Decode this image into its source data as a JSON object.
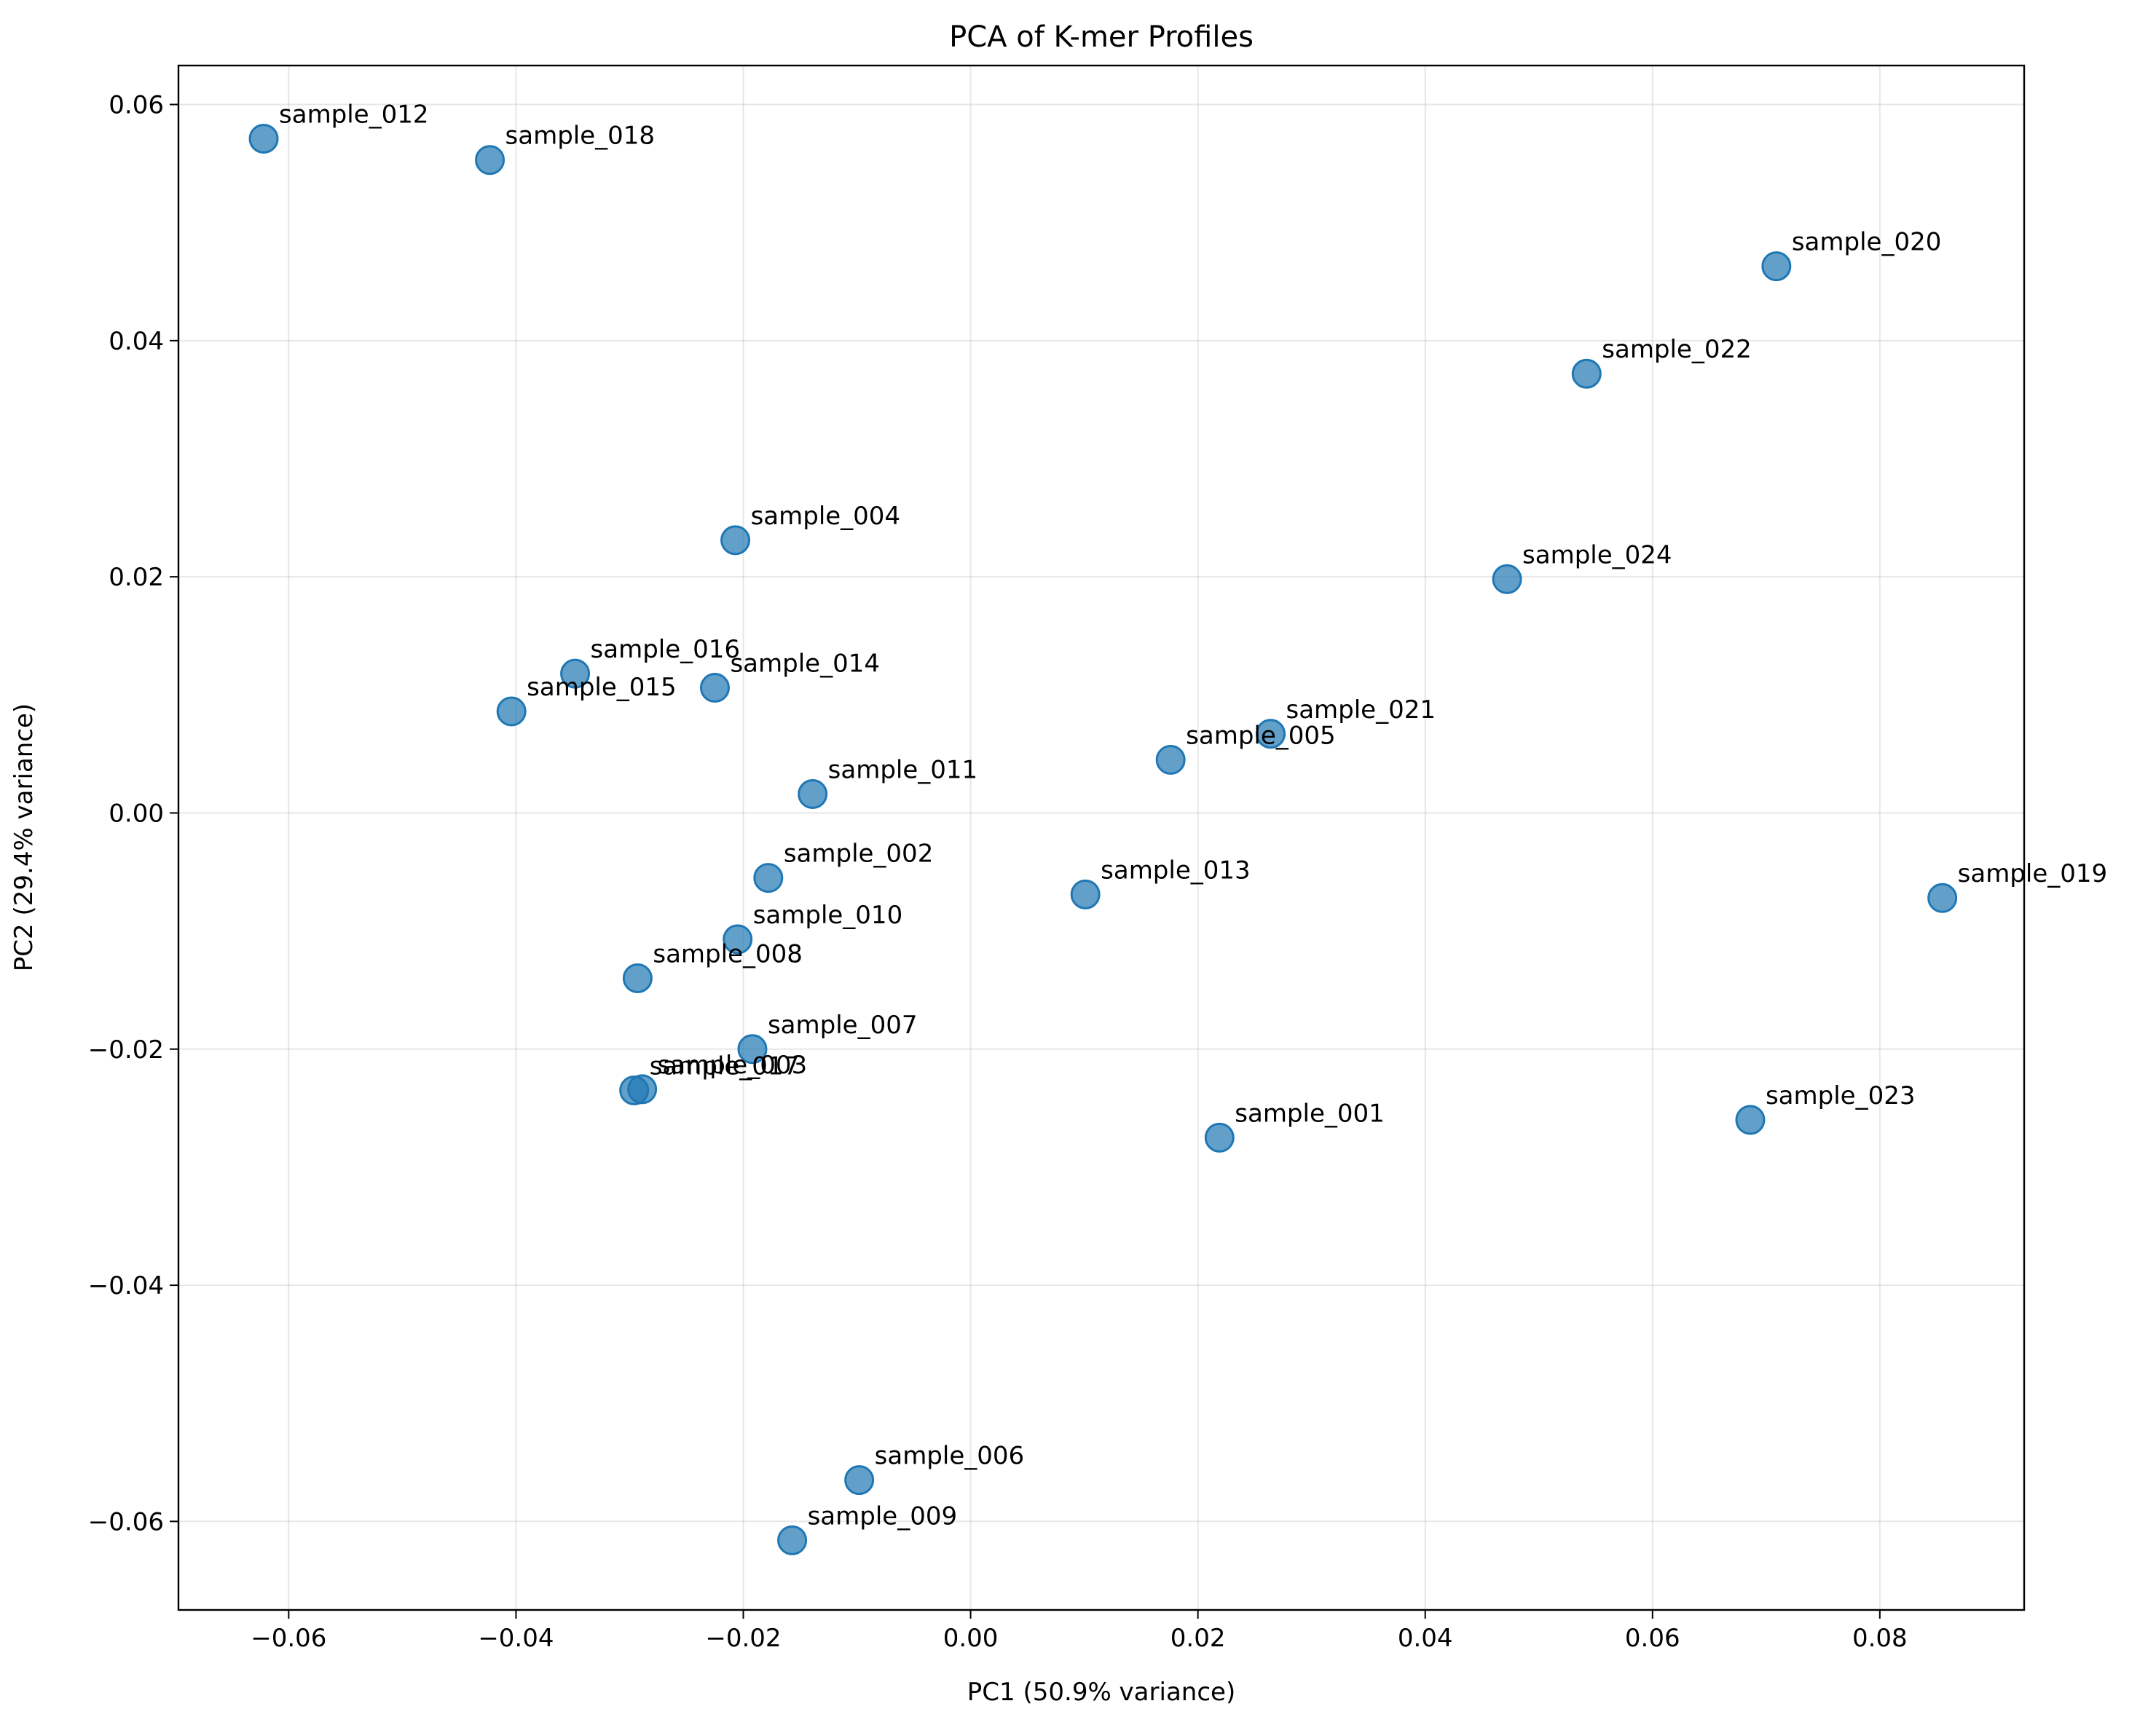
{
  "chart_data": {
    "type": "scatter",
    "title": "PCA of K-mer Profiles",
    "xlabel": "PC1 (50.9% variance)",
    "ylabel": "PC2 (29.4% variance)",
    "xlim": [
      -0.0697,
      0.0927
    ],
    "ylim": [
      -0.0675,
      0.0633
    ],
    "xticks": [
      -0.06,
      -0.04,
      -0.02,
      0.0,
      0.02,
      0.04,
      0.06,
      0.08
    ],
    "xtick_labels": [
      "−0.06",
      "−0.04",
      "−0.02",
      "0.00",
      "0.02",
      "0.04",
      "0.06",
      "0.08"
    ],
    "yticks": [
      -0.06,
      -0.04,
      -0.02,
      0.0,
      0.02,
      0.04,
      0.06
    ],
    "ytick_labels": [
      "−0.06",
      "−0.04",
      "−0.02",
      "0.00",
      "0.02",
      "0.04",
      "0.06"
    ],
    "grid": true,
    "marker_color": "#1f77b4",
    "points": [
      {
        "label": "sample_001",
        "x": 0.0219,
        "y": -0.0275
      },
      {
        "label": "sample_002",
        "x": -0.0178,
        "y": -0.0055
      },
      {
        "label": "sample_003",
        "x": -0.0289,
        "y": -0.0234
      },
      {
        "label": "sample_004",
        "x": -0.0207,
        "y": 0.0231
      },
      {
        "label": "sample_005",
        "x": 0.0176,
        "y": 0.0045
      },
      {
        "label": "sample_006",
        "x": -0.0098,
        "y": -0.0565
      },
      {
        "label": "sample_007",
        "x": -0.0192,
        "y": -0.02
      },
      {
        "label": "sample_008",
        "x": -0.0293,
        "y": -0.014
      },
      {
        "label": "sample_009",
        "x": -0.0157,
        "y": -0.0616
      },
      {
        "label": "sample_010",
        "x": -0.0205,
        "y": -0.0107
      },
      {
        "label": "sample_011",
        "x": -0.0139,
        "y": 0.0016
      },
      {
        "label": "sample_012",
        "x": -0.0622,
        "y": 0.0571
      },
      {
        "label": "sample_013",
        "x": 0.0101,
        "y": -0.0069
      },
      {
        "label": "sample_014",
        "x": -0.0225,
        "y": 0.0106
      },
      {
        "label": "sample_015",
        "x": -0.0404,
        "y": 0.0086
      },
      {
        "label": "sample_016",
        "x": -0.0348,
        "y": 0.0118
      },
      {
        "label": "sample_017",
        "x": -0.0296,
        "y": -0.0235
      },
      {
        "label": "sample_018",
        "x": -0.0423,
        "y": 0.0553
      },
      {
        "label": "sample_019",
        "x": 0.0855,
        "y": -0.0072
      },
      {
        "label": "sample_020",
        "x": 0.0709,
        "y": 0.0463
      },
      {
        "label": "sample_021",
        "x": 0.0264,
        "y": 0.0067
      },
      {
        "label": "sample_022",
        "x": 0.0542,
        "y": 0.0372
      },
      {
        "label": "sample_023",
        "x": 0.0686,
        "y": -0.026
      },
      {
        "label": "sample_024",
        "x": 0.0472,
        "y": 0.0198
      }
    ]
  }
}
